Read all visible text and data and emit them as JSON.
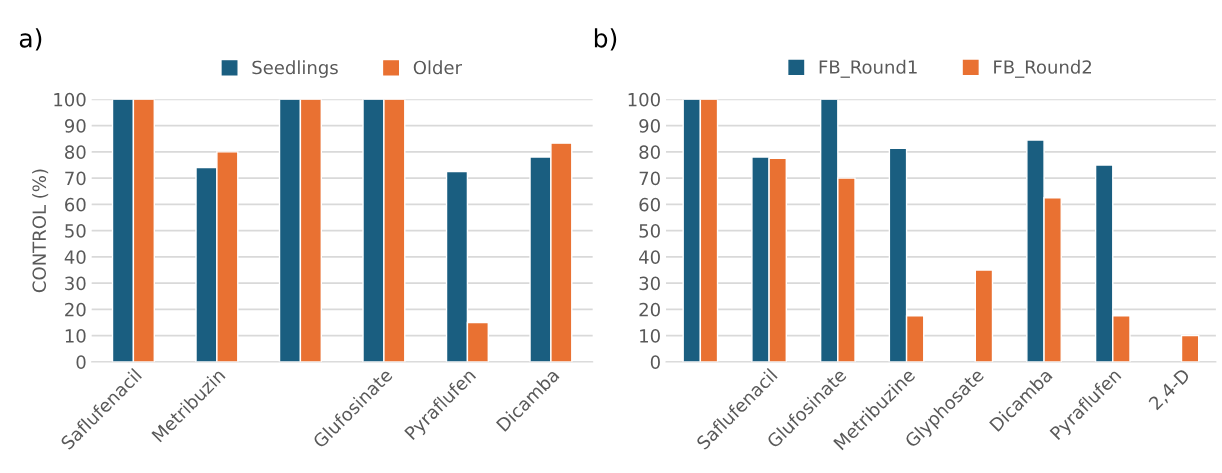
{
  "chart_data": [
    {
      "type": "bar",
      "title": "a)",
      "ylabel": "CONTROL (%)",
      "categories": [
        "Saflufenacil",
        "Metribuzin",
        null,
        "Glufosinate",
        "Pyraflufen",
        "Dicamba"
      ],
      "series": [
        {
          "name": "Seedlings",
          "color": "#1a5e80",
          "values": [
            100,
            74,
            100,
            100,
            72.5,
            78
          ]
        },
        {
          "name": "Older",
          "color": "#e97132",
          "values": [
            100,
            80,
            100,
            100,
            15,
            83.3
          ]
        }
      ],
      "ylim": [
        0,
        100
      ],
      "yticks": [
        0,
        10,
        20,
        30,
        40,
        50,
        60,
        70,
        80,
        90,
        100
      ],
      "grid": "y",
      "legend": "top"
    },
    {
      "type": "bar",
      "title": "b)",
      "categories": [
        null,
        "Saflufenacil",
        "Glufosinate",
        "Metribuzine",
        "Glyphosate",
        "Dicamba",
        "Pyraflufen",
        "2,4-D"
      ],
      "series": [
        {
          "name": "FB_Round1",
          "color": "#1a5e80",
          "values": [
            100,
            78,
            100,
            81.3,
            null,
            84.5,
            75,
            null
          ]
        },
        {
          "name": "FB_Round2",
          "color": "#e97132",
          "values": [
            100,
            77.5,
            70,
            17.5,
            35,
            62.5,
            17.5,
            10
          ]
        }
      ],
      "ylim": [
        0,
        100
      ],
      "yticks": [
        0,
        10,
        20,
        30,
        40,
        50,
        60,
        70,
        80,
        90,
        100
      ],
      "grid": "y",
      "legend": "top"
    }
  ]
}
